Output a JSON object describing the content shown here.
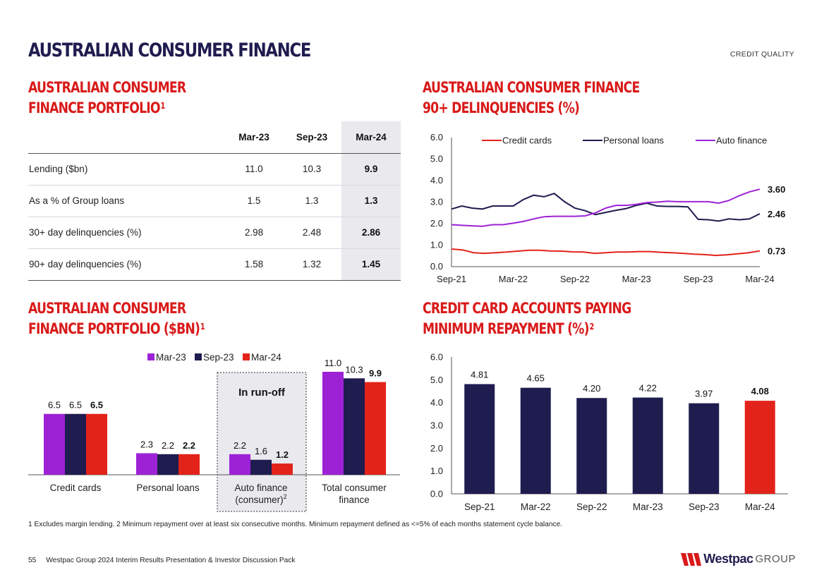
{
  "header": {
    "title": "AUSTRALIAN CONSUMER FINANCE",
    "section_tag": "CREDIT QUALITY"
  },
  "portfolio_table": {
    "heading_line1": "AUSTRALIAN CONSUMER",
    "heading_line2": "FINANCE PORTFOLIO",
    "heading_note": "1",
    "columns": [
      "Mar-23",
      "Sep-23",
      "Mar-24"
    ],
    "rows": [
      {
        "label": "Lending ($bn)",
        "values": [
          "11.0",
          "10.3",
          "9.9"
        ]
      },
      {
        "label": "As a % of Group loans",
        "values": [
          "1.5",
          "1.3",
          "1.3"
        ]
      },
      {
        "label": "30+ day delinquencies (%)",
        "values": [
          "2.98",
          "2.48",
          "2.86"
        ]
      },
      {
        "label": "90+ day delinquencies (%)",
        "values": [
          "1.58",
          "1.32",
          "1.45"
        ]
      }
    ]
  },
  "delinquency_chart": {
    "heading_line1": "AUSTRALIAN CONSUMER FINANCE",
    "heading_line2": "90+ DELINQUENCIES (%)",
    "colors": {
      "credit_cards": "#e2231a",
      "personal_loans": "#1f1c4f",
      "auto_finance": "#9d22d6"
    }
  },
  "bar_chart_heading": {
    "line1": "AUSTRALIAN CONSUMER",
    "line2": "FINANCE PORTFOLIO ($BN)",
    "note": "1",
    "runoff_label": "In run-off",
    "colors": {
      "mar23": "#9d22d6",
      "sep23": "#1f1c4f",
      "mar24": "#e2231a"
    }
  },
  "min_repay_heading": {
    "line1": "CREDIT CARD ACCOUNTS PAYING",
    "line2": "MINIMUM REPAYMENT (%)",
    "note": "2",
    "colors": {
      "bar": "#1f1c4f",
      "highlight": "#e2231a"
    }
  },
  "chart_data": [
    {
      "type": "line",
      "title": "Australian Consumer Finance 90+ delinquencies (%)",
      "xlabel": "",
      "ylabel": "",
      "ylim": [
        0,
        6
      ],
      "yticks": [
        "0.0",
        "1.0",
        "2.0",
        "3.0",
        "4.0",
        "5.0",
        "6.0"
      ],
      "xtick_labels": [
        "Sep-21",
        "Mar-22",
        "Sep-22",
        "Mar-23",
        "Sep-23",
        "Mar-24"
      ],
      "legend_position": "top",
      "series": [
        {
          "name": "Credit cards",
          "end_label": "0.73",
          "values": [
            0.82,
            0.78,
            0.65,
            0.62,
            0.65,
            0.68,
            0.72,
            0.76,
            0.76,
            0.73,
            0.72,
            0.69,
            0.68,
            0.62,
            0.65,
            0.68,
            0.68,
            0.7,
            0.7,
            0.67,
            0.65,
            0.62,
            0.58,
            0.56,
            0.52,
            0.55,
            0.6,
            0.65,
            0.73
          ]
        },
        {
          "name": "Personal loans",
          "end_label": "2.46",
          "values": [
            2.68,
            2.82,
            2.72,
            2.68,
            2.82,
            2.82,
            2.82,
            3.12,
            3.32,
            3.25,
            3.4,
            3.02,
            2.72,
            2.6,
            2.42,
            2.52,
            2.62,
            2.7,
            2.85,
            2.95,
            2.82,
            2.8,
            2.8,
            2.78,
            2.2,
            2.18,
            2.12,
            2.22,
            2.18,
            2.22,
            2.46
          ]
        },
        {
          "name": "Auto finance",
          "end_label": "3.60",
          "values": [
            1.95,
            1.92,
            1.9,
            1.88,
            1.95,
            1.95,
            2.02,
            2.1,
            2.22,
            2.32,
            2.34,
            2.34,
            2.34,
            2.36,
            2.5,
            2.72,
            2.85,
            2.85,
            2.9,
            2.98,
            3.0,
            3.04,
            3.02,
            3.02,
            3.02,
            3.02,
            2.95,
            3.08,
            3.3,
            3.48,
            3.6
          ]
        }
      ]
    },
    {
      "type": "bar",
      "title": "Australian Consumer Finance portfolio ($bn)",
      "categories": [
        "Credit cards",
        "Personal loans",
        "Auto finance\n(consumer)",
        "Total consumer\nfinance"
      ],
      "category_notes": [
        "",
        "",
        "2",
        ""
      ],
      "legend_position": "top",
      "series": [
        {
          "name": "Mar-23",
          "values": [
            6.5,
            2.3,
            2.2,
            11.0
          ]
        },
        {
          "name": "Sep-23",
          "values": [
            6.5,
            2.2,
            1.6,
            10.3
          ]
        },
        {
          "name": "Mar-24",
          "values": [
            6.5,
            2.2,
            1.2,
            9.9
          ]
        }
      ],
      "ylim": [
        0,
        11.5
      ]
    },
    {
      "type": "bar",
      "title": "Credit card accounts paying minimum repayment (%)",
      "categories": [
        "Sep-21",
        "Mar-22",
        "Sep-22",
        "Mar-23",
        "Sep-23",
        "Mar-24"
      ],
      "values": [
        4.81,
        4.65,
        4.2,
        4.22,
        3.97,
        4.08
      ],
      "value_labels": [
        "4.81",
        "4.65",
        "4.20",
        "4.22",
        "3.97",
        "4.08"
      ],
      "ylim": [
        0,
        6
      ],
      "yticks": [
        "0.0",
        "1.0",
        "2.0",
        "3.0",
        "4.0",
        "5.0",
        "6.0"
      ]
    }
  ],
  "footnote": "1 Excludes margin lending. 2 Minimum repayment over at least six consecutive months. Minimum repayment defined as <=5% of each months statement cycle balance.",
  "footer": {
    "page_number": "55",
    "doc_title": "Westpac Group 2024 Interim Results Presentation & Investor Discussion Pack",
    "brand_name": "Westpac",
    "brand_group": "GROUP"
  }
}
